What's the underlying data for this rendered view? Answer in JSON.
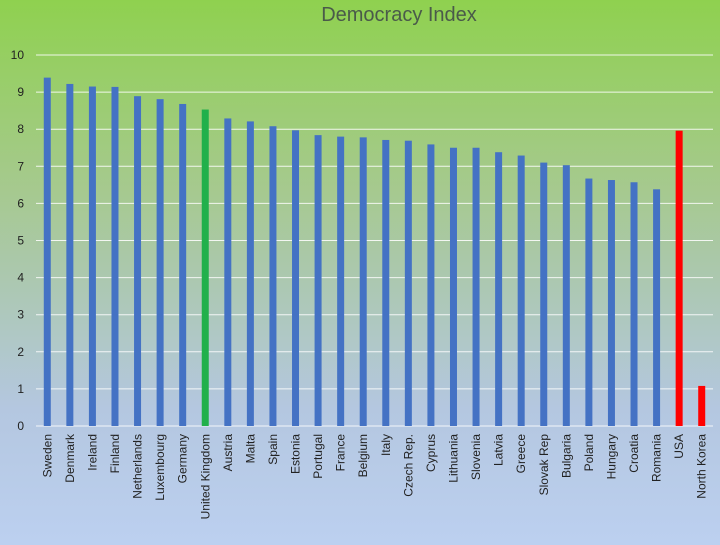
{
  "chart_data": {
    "type": "bar",
    "title": "Democracy Index",
    "xlabel": "",
    "ylabel": "",
    "ylim": [
      0,
      10
    ],
    "yticks": [
      0,
      1,
      2,
      3,
      4,
      5,
      6,
      7,
      8,
      9,
      10
    ],
    "grid": true,
    "legend": "none",
    "categories": [
      "Sweden",
      "Denmark",
      "Ireland",
      "Finland",
      "Netherlands",
      "Luxembourg",
      "Germany",
      "United Kingdom",
      "Austria",
      "Malta",
      "Spain",
      "Estonia",
      "Portugal",
      "France",
      "Belgium",
      "Italy",
      "Czech Rep.",
      "Cyprus",
      "Lithuania",
      "Slovenia",
      "Latvia",
      "Greece",
      "Slovak Rep",
      "Bulgaria",
      "Poland",
      "Hungary",
      "Croatia",
      "Romania",
      "USA",
      "North Korea"
    ],
    "values": [
      9.39,
      9.22,
      9.15,
      9.14,
      8.89,
      8.81,
      8.68,
      8.53,
      8.29,
      8.21,
      8.08,
      7.97,
      7.84,
      7.8,
      7.78,
      7.71,
      7.69,
      7.59,
      7.5,
      7.5,
      7.38,
      7.29,
      7.1,
      7.03,
      6.67,
      6.63,
      6.57,
      6.38,
      7.96,
      1.08
    ],
    "colors": {
      "default": "#4472c4",
      "highlight_uk": "#21b04b",
      "highlight_red": "#ff0000"
    },
    "bar_colors": [
      "#4472c4",
      "#4472c4",
      "#4472c4",
      "#4472c4",
      "#4472c4",
      "#4472c4",
      "#4472c4",
      "#21b04b",
      "#4472c4",
      "#4472c4",
      "#4472c4",
      "#4472c4",
      "#4472c4",
      "#4472c4",
      "#4472c4",
      "#4472c4",
      "#4472c4",
      "#4472c4",
      "#4472c4",
      "#4472c4",
      "#4472c4",
      "#4472c4",
      "#4472c4",
      "#4472c4",
      "#4472c4",
      "#4472c4",
      "#4472c4",
      "#4472c4",
      "#ff0000",
      "#ff0000"
    ]
  }
}
